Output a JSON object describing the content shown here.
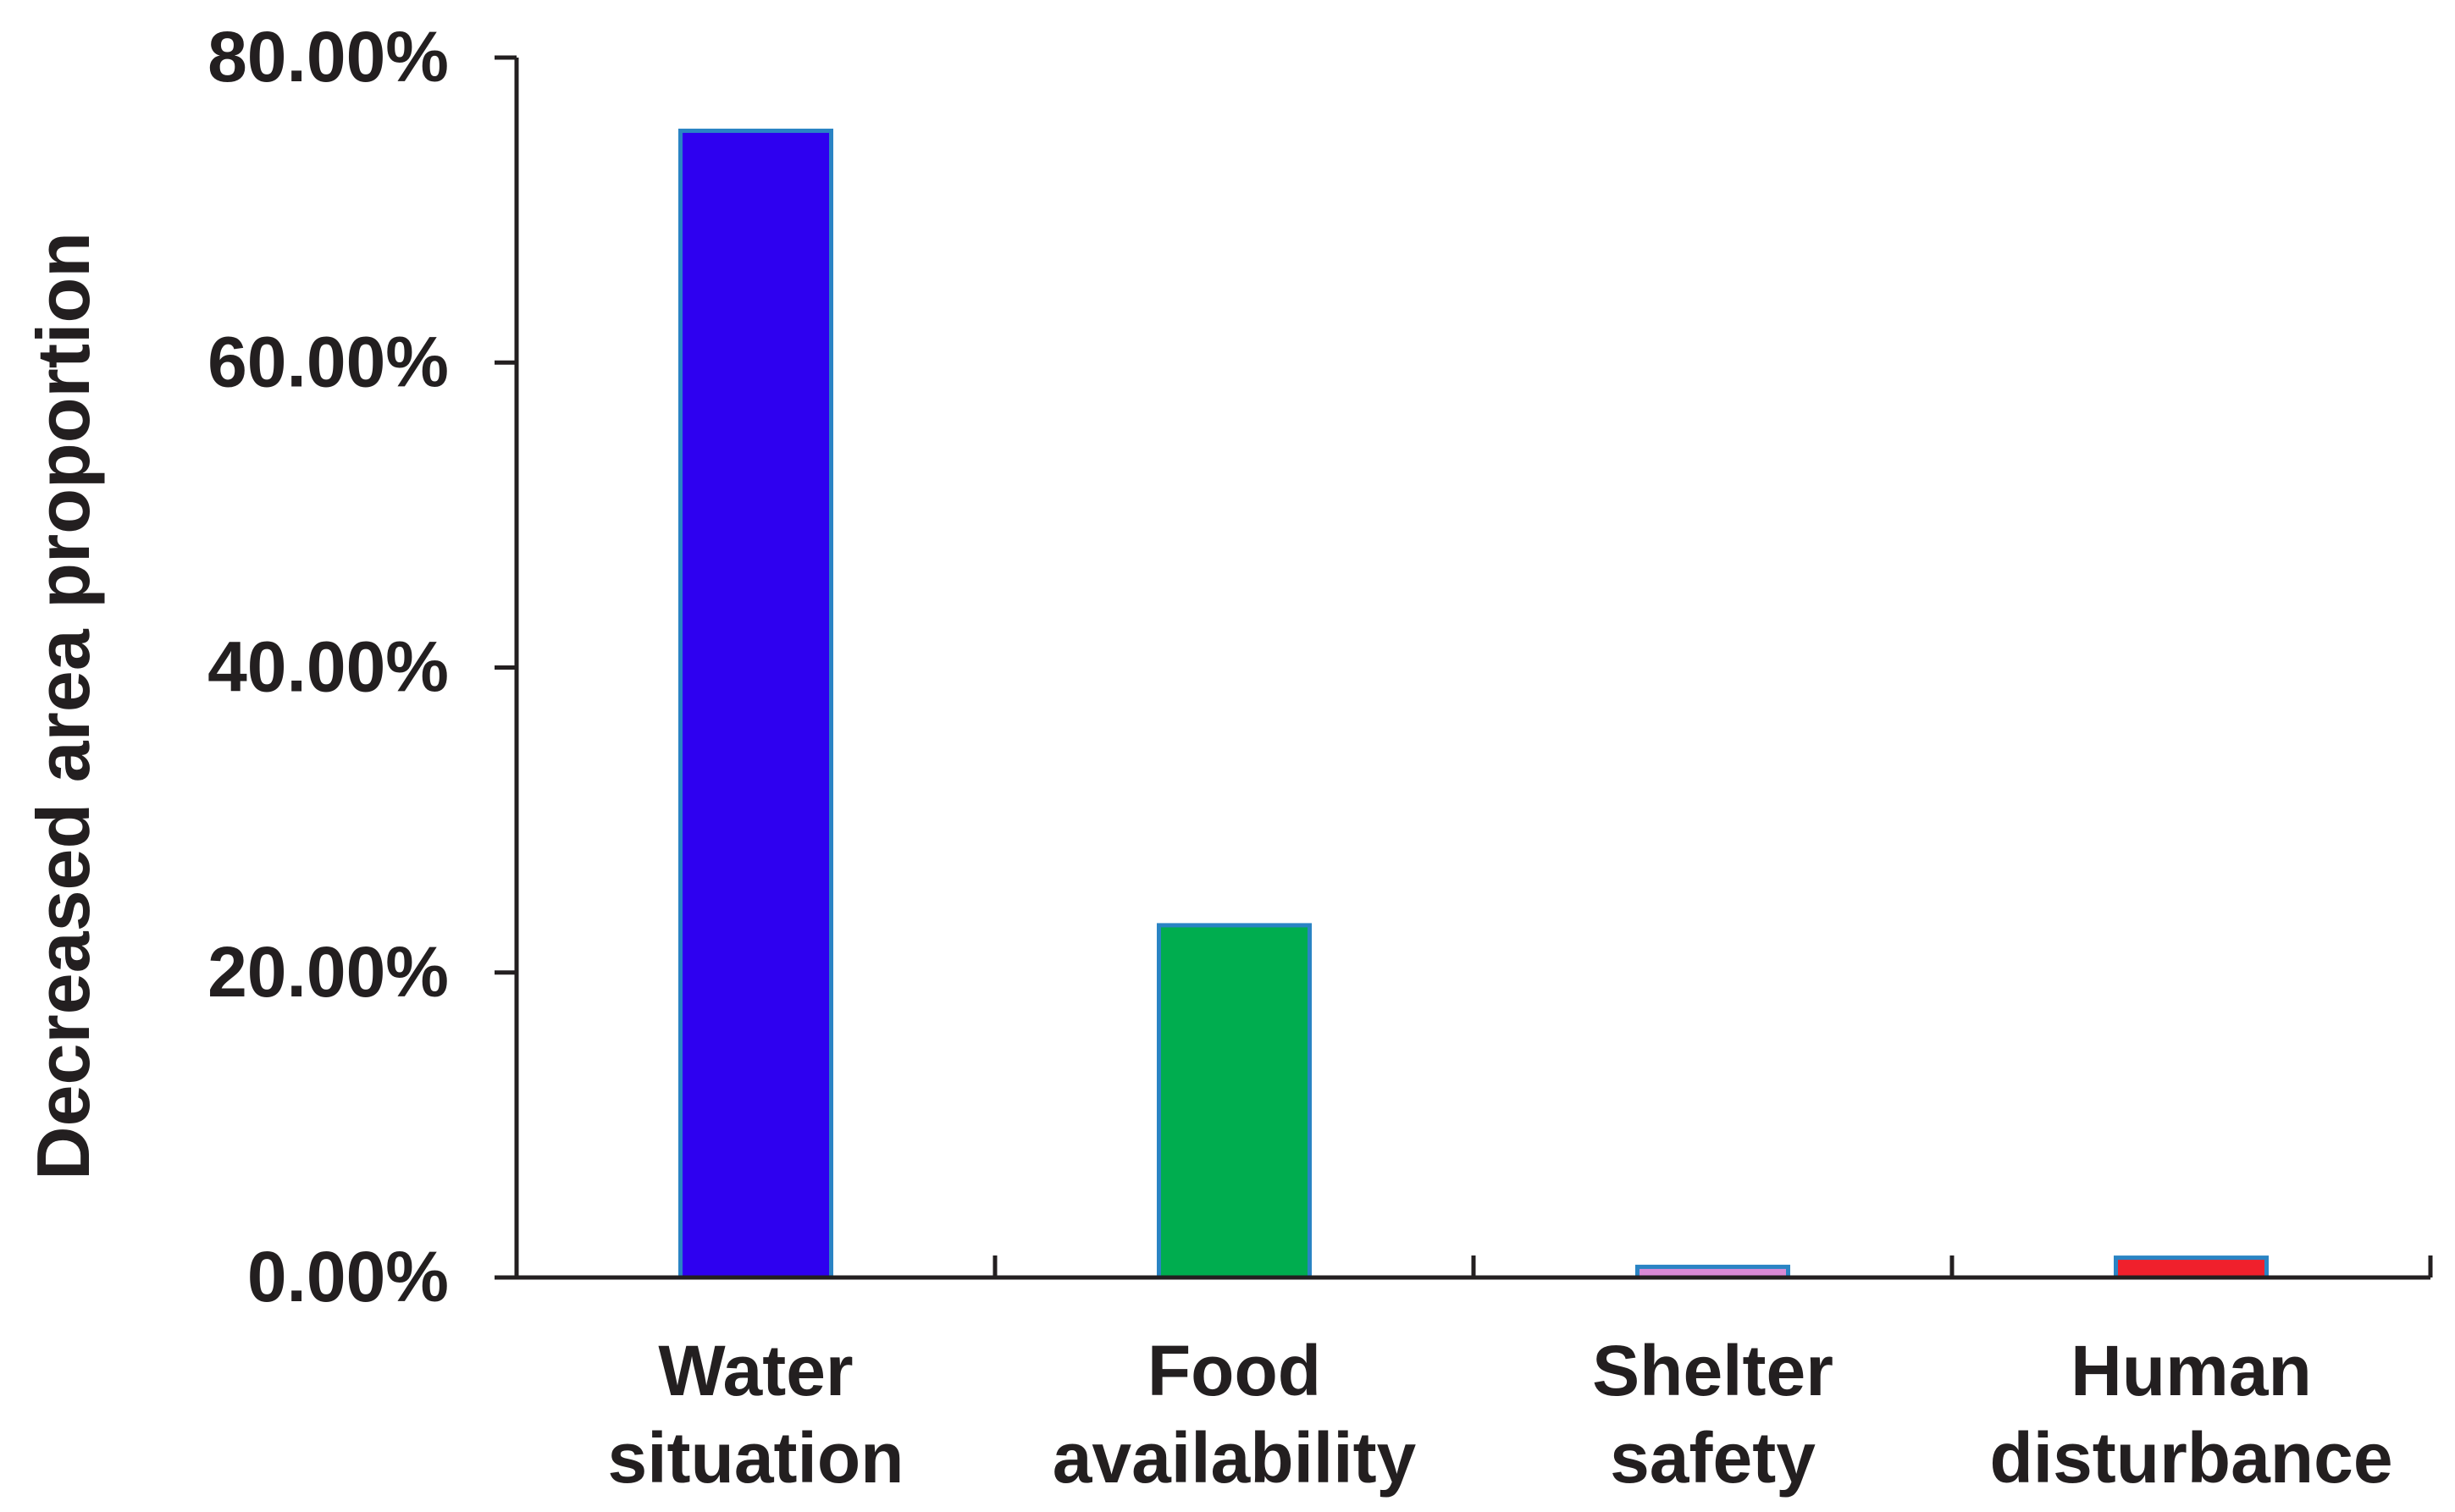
{
  "chart_data": {
    "type": "bar",
    "title": "",
    "xlabel": "",
    "ylabel": "Decreased area proportion",
    "ylim": [
      0,
      80
    ],
    "yticks": [
      0,
      20,
      40,
      60,
      80
    ],
    "ytick_labels": [
      "0.00%",
      "20.00%",
      "40.00%",
      "60.00%",
      "80.00%"
    ],
    "grid": false,
    "legend": "none",
    "categories": [
      {
        "lines": [
          "Water",
          "situation"
        ],
        "value": 75.2,
        "color": "#2e00f0"
      },
      {
        "lines": [
          "Food",
          "availability"
        ],
        "value": 23.1,
        "color": "#00ad4f"
      },
      {
        "lines": [
          "Shelter",
          "safety"
        ],
        "value": 0.7,
        "color": "#d98ad6"
      },
      {
        "lines": [
          "Human",
          "disturbance"
        ],
        "value": 1.3,
        "color": "#f0202c"
      }
    ],
    "bar_edge_color": "#2a84c4"
  }
}
